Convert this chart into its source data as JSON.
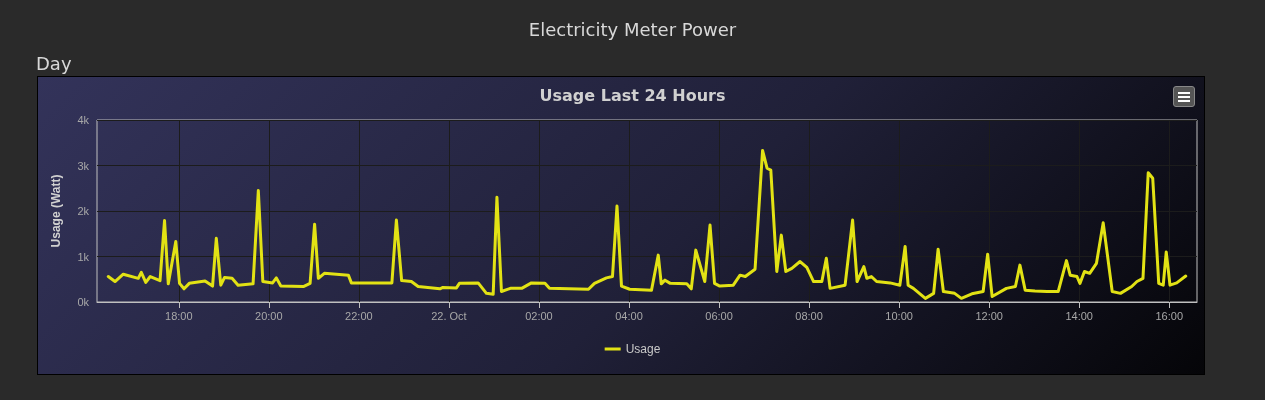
{
  "chart_data": {
    "type": "line",
    "title": "Usage Last 24 Hours",
    "ylabel": "Usage (Watt)",
    "annotations": [
      "Electricity Meter Power",
      "Day"
    ],
    "x": [
      "--10-21T16:26",
      "--10-21T16:35",
      "--10-21T16:46",
      "--10-21T17:06",
      "--10-21T17:10",
      "--10-21T17:16",
      "--10-21T17:22",
      "--10-21T17:35",
      "--10-21T17:41",
      "--10-21T17:46",
      "--10-21T17:56",
      "--10-21T18:01",
      "--10-21T18:07",
      "--10-21T18:14",
      "--10-21T18:35",
      "--10-21T18:45",
      "--10-21T18:50",
      "--10-21T18:56",
      "--10-21T19:01",
      "--10-21T19:11",
      "--10-21T19:19",
      "--10-21T19:39",
      "--10-21T19:46",
      "--10-21T19:52",
      "--10-21T20:05",
      "--10-21T20:10",
      "--10-21T20:16",
      "--10-21T20:46",
      "--10-21T20:55",
      "--10-21T21:01",
      "--10-21T21:06",
      "--10-21T21:14",
      "--10-21T21:46",
      "--10-21T21:50",
      "--10-21T22:44",
      "--10-21T22:50",
      "--10-21T22:57",
      "--10-21T23:10",
      "--10-21T23:19",
      "--10-21T23:48",
      "--10-21T23:52",
      "--10-22T00:10",
      "--10-22T00:14",
      "--10-22T00:39",
      "--10-22T00:50",
      "--10-22T00:59",
      "--10-22T01:04",
      "--10-22T01:10",
      "--10-22T01:22",
      "--10-22T01:37",
      "--10-22T01:50",
      "--10-22T02:08",
      "--10-22T02:14",
      "--10-22T03:06",
      "--10-22T03:14",
      "--10-22T03:30",
      "--10-22T03:38",
      "--10-22T03:44",
      "--10-22T03:50",
      "--10-22T04:01",
      "--10-22T04:30",
      "--10-22T04:39",
      "--10-22T04:43",
      "--10-22T04:48",
      "--10-22T04:55",
      "--10-22T05:17",
      "--10-22T05:23",
      "--10-22T05:29",
      "--10-22T05:41",
      "--10-22T05:48",
      "--10-22T05:54",
      "--10-22T06:01",
      "--10-22T06:19",
      "--10-22T06:28",
      "--10-22T06:35",
      "--10-22T06:48",
      "--10-22T06:58",
      "--10-22T07:04",
      "--10-22T07:09",
      "--10-22T07:17",
      "--10-22T07:23",
      "--10-22T07:29",
      "--10-22T07:37",
      "--10-22T07:48",
      "--10-22T07:57",
      "--10-22T08:06",
      "--10-22T08:17",
      "--10-22T08:23",
      "--10-22T08:28",
      "--10-22T08:48",
      "--10-22T08:58",
      "--10-22T09:04",
      "--10-22T09:13",
      "--10-22T09:17",
      "--10-22T09:23",
      "--10-22T09:30",
      "--10-22T09:48",
      "--10-22T10:01",
      "--10-22T10:08",
      "--10-22T10:12",
      "--10-22T10:19",
      "--10-22T10:35",
      "--10-22T10:46",
      "--10-22T10:52",
      "--10-22T10:59",
      "--10-22T11:14",
      "--10-22T11:23",
      "--10-22T11:37",
      "--10-22T11:52",
      "--10-22T11:58",
      "--10-22T12:04",
      "--10-22T12:23",
      "--10-22T12:35",
      "--10-22T12:41",
      "--10-22T12:48",
      "--10-22T13:01",
      "--10-22T13:17",
      "--10-22T13:32",
      "--10-22T13:43",
      "--10-22T13:48",
      "--10-22T13:57",
      "--10-22T14:01",
      "--10-22T14:07",
      "--10-22T14:14",
      "--10-22T14:23",
      "--10-22T14:32",
      "--10-22T14:44",
      "--10-22T14:55",
      "--10-22T15:10",
      "--10-22T15:17",
      "--10-22T15:25",
      "--10-22T15:32",
      "--10-22T15:38",
      "--10-22T15:46",
      "--10-22T15:52",
      "--10-22T15:56",
      "--10-22T16:01",
      "--10-22T16:10",
      "--10-22T16:22"
    ],
    "series": [
      {
        "name": "Usage",
        "color": "#e2e214",
        "values": [
          560,
          450,
          610,
          520,
          650,
          430,
          560,
          470,
          1790,
          400,
          1330,
          410,
          290,
          410,
          460,
          350,
          1400,
          370,
          540,
          520,
          370,
          400,
          2450,
          450,
          420,
          530,
          350,
          340,
          410,
          1710,
          520,
          630,
          590,
          420,
          420,
          1800,
          470,
          450,
          340,
          290,
          320,
          310,
          410,
          420,
          190,
          170,
          2300,
          230,
          300,
          300,
          420,
          410,
          300,
          280,
          410,
          530,
          560,
          2110,
          350,
          280,
          260,
          1030,
          400,
          480,
          410,
          400,
          290,
          1140,
          450,
          1690,
          410,
          350,
          370,
          590,
          560,
          720,
          3330,
          2940,
          2900,
          670,
          1470,
          670,
          740,
          890,
          760,
          450,
          450,
          960,
          300,
          370,
          1800,
          450,
          780,
          520,
          560,
          450,
          420,
          370,
          1220,
          370,
          300,
          80,
          190,
          1160,
          230,
          190,
          80,
          180,
          230,
          1050,
          120,
          300,
          340,
          810,
          260,
          240,
          230,
          230,
          910,
          590,
          560,
          410,
          670,
          630,
          850,
          1740,
          230,
          190,
          340,
          450,
          520,
          2840,
          2720,
          410,
          370,
          1100,
          370,
          420,
          570
        ]
      }
    ],
    "xlim": [
      "--10-21T16:11",
      "--10-22T16:37"
    ],
    "xticks": [
      {
        "value": "--10-21T18:00",
        "label": "18:00"
      },
      {
        "value": "--10-21T20:00",
        "label": "20:00"
      },
      {
        "value": "--10-21T22:00",
        "label": "22:00"
      },
      {
        "value": "--10-22",
        "label": "22. Oct"
      },
      {
        "value": "--10-22T02:00",
        "label": "02:00"
      },
      {
        "value": "--10-22T04:00",
        "label": "04:00"
      },
      {
        "value": "--10-22T06:00",
        "label": "06:00"
      },
      {
        "value": "--10-22T08:00",
        "label": "08:00"
      },
      {
        "value": "--10-22T10:00",
        "label": "10:00"
      },
      {
        "value": "--10-22T12:00",
        "label": "12:00"
      },
      {
        "value": "--10-22T14:00",
        "label": "14:00"
      },
      {
        "value": "--10-22T16:00",
        "label": "16:00"
      }
    ],
    "ylim": [
      0,
      4000
    ],
    "yticks": [
      {
        "value": 0,
        "label": "0k"
      },
      {
        "value": 1000,
        "label": "1k"
      },
      {
        "value": 2000,
        "label": "2k"
      },
      {
        "value": 3000,
        "label": "3k"
      },
      {
        "value": 4000,
        "label": "4k"
      }
    ],
    "grid": true,
    "legend": "bottom",
    "marker": "none",
    "line_style": "solid"
  }
}
